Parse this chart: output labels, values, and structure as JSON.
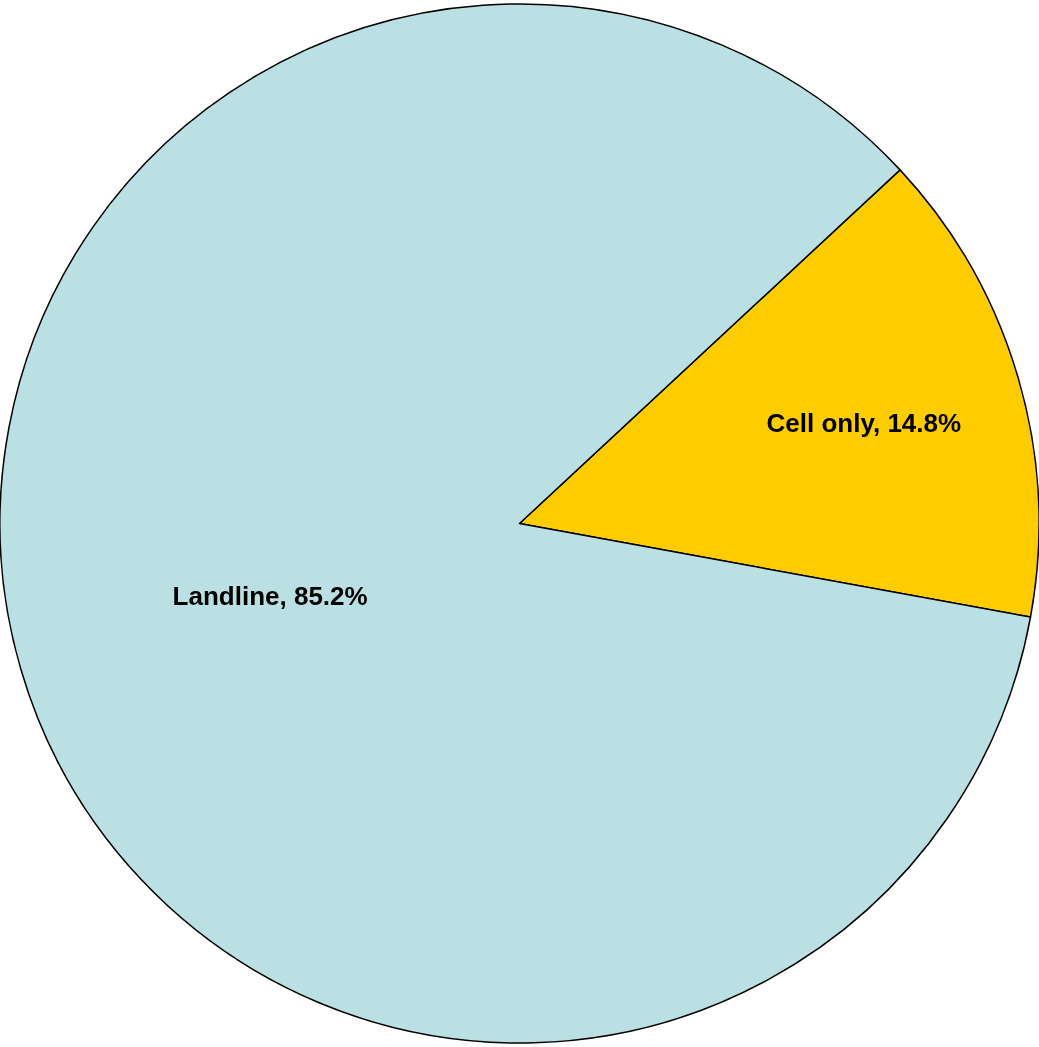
{
  "chart_data": {
    "type": "pie",
    "categories": [
      "Cell only, 14.8%",
      "Landline, 85.2%"
    ],
    "values": [
      14.8,
      85.2
    ],
    "colors": [
      "#ffcc00",
      "#bbe0e3"
    ],
    "legend": false
  }
}
